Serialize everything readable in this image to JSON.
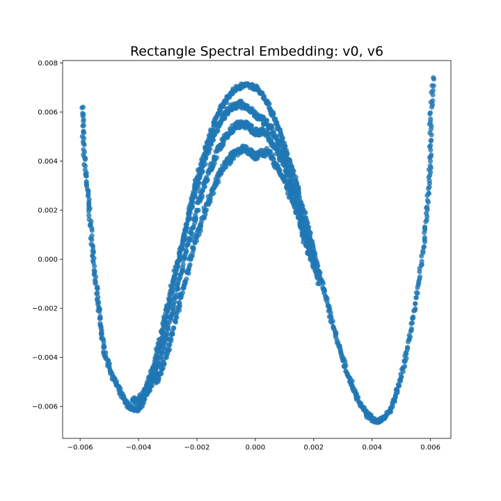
{
  "chart_data": {
    "type": "scatter",
    "title": "Rectangle Spectral Embedding: v0, v6",
    "xlabel": "",
    "ylabel": "",
    "xlim": [
      -0.0066,
      0.0067
    ],
    "ylim": [
      -0.0073,
      0.0081
    ],
    "xticks": [
      -0.006,
      -0.004,
      -0.002,
      0.0,
      0.002,
      0.004,
      0.006
    ],
    "xtick_labels": [
      "−0.006",
      "−0.004",
      "−0.002",
      "0.000",
      "0.002",
      "0.004",
      "0.006"
    ],
    "yticks": [
      -0.006,
      -0.004,
      -0.002,
      0.0,
      0.002,
      0.004,
      0.006,
      0.008
    ],
    "ytick_labels": [
      "−0.006",
      "−0.004",
      "−0.002",
      "0.000",
      "0.002",
      "0.004",
      "0.006",
      "0.008"
    ],
    "grid": false,
    "legend": "none",
    "marker_color": "#1f77b4",
    "marker_alpha": 0.8,
    "series": [
      {
        "x": [
          -0.0059,
          -0.0059,
          -0.0058,
          -0.0057,
          -0.0056,
          -0.0055,
          -0.0054,
          -0.0053,
          -0.0052,
          -0.005,
          -0.0048,
          -0.0046,
          -0.0044,
          -0.0042,
          -0.004,
          -0.0038,
          -0.0036,
          -0.0034,
          -0.0032,
          -0.003,
          -0.0028,
          -0.0026,
          -0.0024,
          -0.0022,
          -0.002,
          -0.0018,
          -0.0016,
          -0.0014,
          -0.0012,
          -0.001,
          -0.0008,
          -0.0006,
          -0.0004,
          -0.0002,
          0.0,
          0.0002,
          0.0004,
          0.0006,
          0.0008,
          0.001,
          0.0012,
          0.0014,
          0.0016,
          0.0018,
          0.002,
          0.0022,
          0.0024,
          0.0026,
          0.0028,
          0.003,
          0.0032,
          0.0034,
          0.0036,
          0.0038,
          0.004,
          0.0042,
          0.0044,
          0.0046,
          0.0048,
          0.005,
          0.0052,
          0.0054,
          0.0056,
          0.0058,
          0.0059,
          0.006,
          0.006,
          0.0061
        ],
        "y": [
          0.0062,
          0.0048,
          0.0034,
          0.0022,
          0.0008,
          -0.0005,
          -0.0017,
          -0.0027,
          -0.0036,
          -0.0044,
          -0.005,
          -0.0055,
          -0.0059,
          -0.0061,
          -0.0061,
          -0.0057,
          -0.0051,
          -0.0042,
          -0.0032,
          -0.0021,
          -0.001,
          0.0001,
          0.0012,
          0.0023,
          0.0033,
          0.0041,
          0.0049,
          0.0056,
          0.0061,
          0.0065,
          0.0068,
          0.007,
          0.0071,
          0.0071,
          0.007,
          0.0068,
          0.0064,
          0.0059,
          0.0053,
          0.0046,
          0.0039,
          0.0031,
          0.0022,
          0.0013,
          0.0004,
          -0.0006,
          -0.0015,
          -0.0024,
          -0.0033,
          -0.0041,
          -0.0048,
          -0.0054,
          -0.0059,
          -0.0063,
          -0.0065,
          -0.0066,
          -0.0065,
          -0.0062,
          -0.0056,
          -0.0048,
          -0.0037,
          -0.0024,
          -0.0009,
          0.0008,
          0.0024,
          0.004,
          0.0056,
          0.0074
        ]
      },
      {
        "x": [
          -0.0042,
          -0.004,
          -0.0038,
          -0.0036,
          -0.0034,
          -0.0032,
          -0.003,
          -0.0028,
          -0.0026,
          -0.0024,
          -0.0022,
          -0.002,
          -0.0018,
          -0.0016,
          -0.0014,
          -0.0012,
          -0.001,
          -0.0008,
          -0.0006,
          -0.0004,
          -0.0002,
          0.0,
          0.0002,
          0.0004,
          0.0006,
          0.0008,
          0.001,
          0.0012,
          0.0014,
          0.0016,
          0.0018,
          0.002,
          0.0022
        ],
        "y": [
          -0.0057,
          -0.0058,
          -0.0054,
          -0.0048,
          -0.0039,
          -0.0029,
          -0.0019,
          -0.0008,
          0.0002,
          0.0012,
          0.0021,
          0.003,
          0.0038,
          0.0045,
          0.0051,
          0.0056,
          0.006,
          0.0062,
          0.0063,
          0.0063,
          0.0061,
          0.0059,
          0.0057,
          0.0055,
          0.0052,
          0.0047,
          0.0041,
          0.0034,
          0.0026,
          0.0017,
          0.0008,
          -0.0001,
          -0.001
        ]
      },
      {
        "x": [
          -0.0038,
          -0.0036,
          -0.0034,
          -0.0032,
          -0.003,
          -0.0028,
          -0.0026,
          -0.0024,
          -0.0022,
          -0.002,
          -0.0018,
          -0.0016,
          -0.0014,
          -0.0012,
          -0.001,
          -0.0008,
          -0.0006,
          -0.0004,
          -0.0002,
          0.0,
          0.0002,
          0.0004,
          0.0006,
          0.0008,
          0.001,
          0.0012,
          0.0014,
          0.0016,
          0.0018,
          0.002
        ],
        "y": [
          -0.0055,
          -0.0052,
          -0.0046,
          -0.0038,
          -0.0028,
          -0.0018,
          -0.0008,
          0.0002,
          0.0011,
          0.002,
          0.0028,
          0.0035,
          0.0041,
          0.0046,
          0.005,
          0.0053,
          0.0055,
          0.0055,
          0.0054,
          0.0052,
          0.0052,
          0.0051,
          0.0047,
          0.0043,
          0.0038,
          0.0031,
          0.0023,
          0.0014,
          0.0006,
          -0.0003
        ]
      },
      {
        "x": [
          -0.0034,
          -0.0032,
          -0.003,
          -0.0028,
          -0.0026,
          -0.0024,
          -0.0022,
          -0.002,
          -0.0018,
          -0.0016,
          -0.0014,
          -0.0012,
          -0.001,
          -0.0008,
          -0.0006,
          -0.0004,
          -0.0002,
          0.0,
          0.0002,
          0.0004,
          0.0006,
          0.0008,
          0.001,
          0.0012,
          0.0014,
          0.0016,
          0.0018
        ],
        "y": [
          -0.005,
          -0.0045,
          -0.0037,
          -0.0028,
          -0.0018,
          -0.0009,
          0.0001,
          0.0009,
          0.0017,
          0.0024,
          0.003,
          0.0035,
          0.0039,
          0.0042,
          0.0044,
          0.0045,
          0.0044,
          0.0042,
          0.0043,
          0.0044,
          0.0041,
          0.0037,
          0.0032,
          0.0026,
          0.0019,
          0.0011,
          0.0003
        ]
      }
    ]
  }
}
